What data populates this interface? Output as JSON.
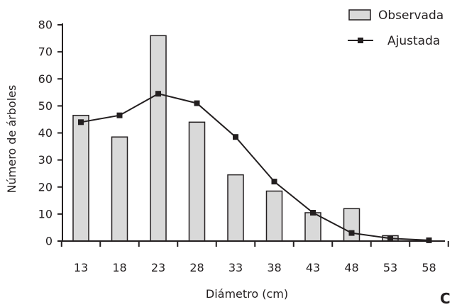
{
  "chart_data": {
    "type": "bar",
    "xlabel": "Diámetro (cm)",
    "ylabel": "Número de árboles",
    "ylim": [
      0,
      80
    ],
    "yticks": [
      0,
      10,
      20,
      30,
      40,
      50,
      60,
      70,
      80
    ],
    "categories": [
      "13",
      "18",
      "23",
      "28",
      "33",
      "38",
      "43",
      "48",
      "53",
      "58"
    ],
    "series": [
      {
        "name": "Observada",
        "kind": "bar",
        "values": [
          46.5,
          38.5,
          76,
          44,
          24.5,
          18.5,
          10.5,
          12,
          2,
          0
        ],
        "color": "#d9d9d9"
      },
      {
        "name": "Ajustada",
        "kind": "line",
        "values": [
          44,
          46.5,
          54.5,
          51,
          38.5,
          22,
          10.5,
          3,
          1,
          0.3
        ],
        "color": "#231f20"
      }
    ],
    "grid": false,
    "legend": "top-right",
    "panel_label": "C"
  }
}
